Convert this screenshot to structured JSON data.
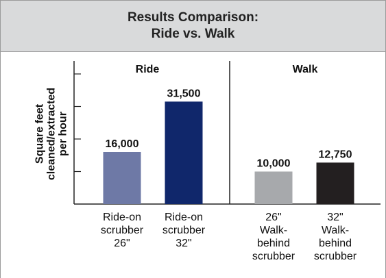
{
  "chart_data": {
    "type": "bar",
    "title": "Results Comparison:\nRide vs. Walk",
    "y_label": "Square feet\ncleaned/extracted\nper hour",
    "groups": [
      "Ride",
      "Walk"
    ],
    "categories": [
      "Ride-on\nscrubber\n26\"",
      "Ride-on\nscrubber\n32\"",
      "26\"\nWalk-\nbehind\nscrubber",
      "32\"\nWalk-\nbehind\nscrubber"
    ],
    "values": [
      16000,
      31500,
      10000,
      12750
    ],
    "value_labels": [
      "16,000",
      "31,500",
      "10,000",
      "12,750"
    ],
    "colors": [
      "#6e79a6",
      "#10276b",
      "#a7a9ac",
      "#231f20"
    ],
    "ylim": [
      0,
      44000
    ],
    "yticks": [
      10000,
      20000,
      30000,
      40000
    ],
    "grid": false
  }
}
